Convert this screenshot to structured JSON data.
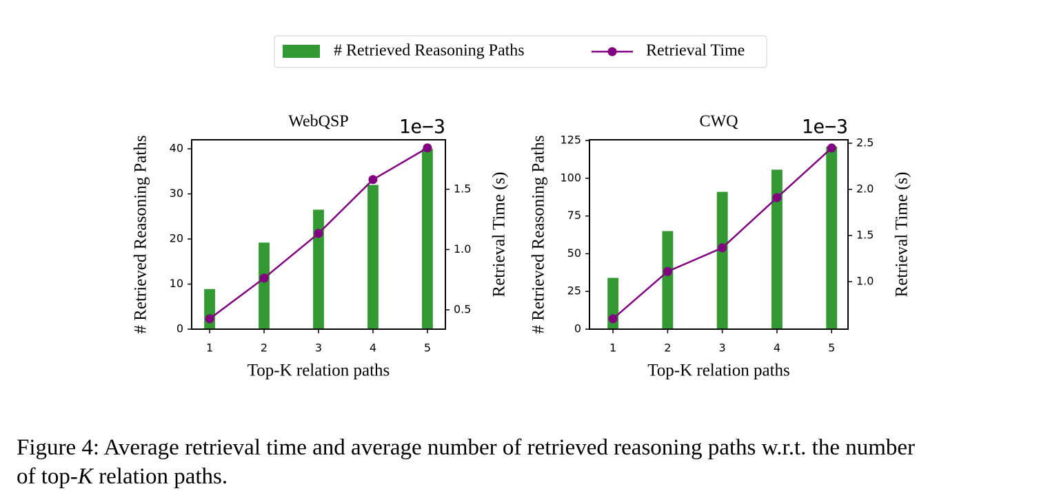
{
  "chart_data": [
    {
      "type": "bar_line",
      "title": "WebQSP",
      "y2_offset_label": "1e−3",
      "xlabel": "Top-K relation paths",
      "ylabel": "# Retrieved Reasoning Paths",
      "y2label": "Retrieval Time (s)",
      "x": [
        1,
        2,
        3,
        4,
        5
      ],
      "series": [
        {
          "name": "# Retrieved Reasoning Paths",
          "type": "bar",
          "color": "#339933",
          "values": [
            8.9,
            19.2,
            26.5,
            32,
            40
          ]
        },
        {
          "name": "Retrieval Time",
          "type": "line",
          "axis": "y2",
          "color": "#800080",
          "values": [
            0.426,
            0.763,
            1.134,
            1.58,
            1.843
          ]
        }
      ],
      "xlim": [
        0.67,
        5.33
      ],
      "xticks": [
        1,
        2,
        3,
        4,
        5
      ],
      "ylim": [
        0,
        42
      ],
      "yticks": [
        0,
        10,
        20,
        30,
        40
      ],
      "y2lim": [
        0.34,
        1.91
      ],
      "y2ticks": [
        0.5,
        {
          "value": 1,
          "label": "1.0"
        },
        1.5
      ]
    },
    {
      "type": "bar_line",
      "title": "CWQ",
      "y2_offset_label": "1e−3",
      "xlabel": "Top-K relation paths",
      "ylabel": "# Retrieved Reasoning Paths",
      "y2label": "Retrieval Time (s)",
      "x": [
        1,
        2,
        3,
        4,
        5
      ],
      "series": [
        {
          "type": "bar",
          "color": "#339933",
          "values": [
            34,
            65,
            91,
            105.7,
            121
          ]
        },
        {
          "type": "line",
          "axis": "y2",
          "color": "#800080",
          "values": [
            0.597,
            1.11,
            1.366,
            1.91,
            2.448
          ]
        }
      ],
      "xlim": [
        0.57,
        5.3
      ],
      "xticks": [
        1,
        2,
        3,
        4,
        5
      ],
      "ylim": [
        0,
        125.5
      ],
      "yticks": [
        0,
        25,
        50,
        75,
        100,
        125
      ],
      "y2lim": [
        0.485,
        2.537
      ],
      "y2ticks": [
        {
          "value": 1,
          "label": "1.0"
        },
        1.5,
        {
          "value": 2,
          "label": "2.0"
        },
        2.5
      ]
    }
  ],
  "caption": {
    "line1": "Figure 4: Average retrieval time and average number of retrieved reasoning paths w.r.t. the number",
    "line2_before": "of top-",
    "line2_k": "K",
    "line2_after": " relation paths."
  }
}
